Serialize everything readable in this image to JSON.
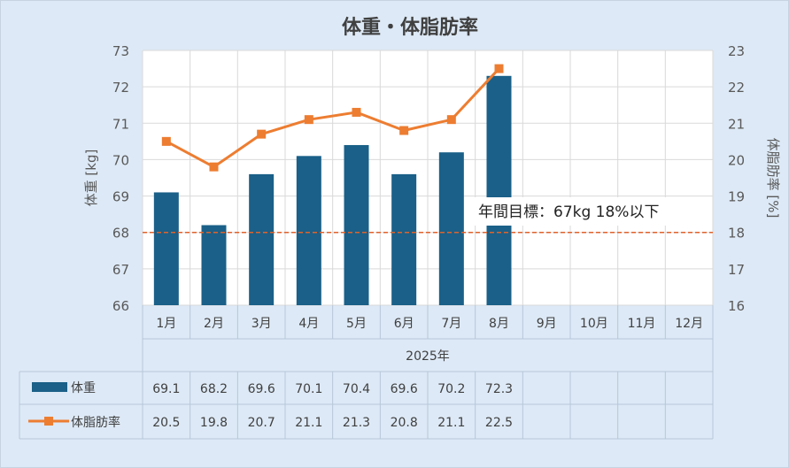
{
  "chart_data": {
    "type": "bar",
    "title": "体重・体脂肪率",
    "categories": [
      "1月",
      "2月",
      "3月",
      "4月",
      "5月",
      "6月",
      "7月",
      "8月",
      "9月",
      "10月",
      "11月",
      "12月"
    ],
    "x_group_label": "2025年",
    "ylabel_left": "体重 [kg]",
    "ylabel_right": "体脂肪率 [%]",
    "ylim_left": [
      66,
      73
    ],
    "ylim_right": [
      16,
      23
    ],
    "yticks_left": [
      "66",
      "67",
      "68",
      "69",
      "70",
      "71",
      "72",
      "73"
    ],
    "yticks_right": [
      "16",
      "17",
      "18",
      "19",
      "20",
      "21",
      "22",
      "23"
    ],
    "grid": true,
    "series": [
      {
        "name": "体重",
        "type": "bar",
        "axis": "left",
        "color": "#1a6088",
        "values": [
          69.1,
          68.2,
          69.6,
          70.1,
          70.4,
          69.6,
          70.2,
          72.3,
          null,
          null,
          null,
          null
        ],
        "labels": [
          "69.1",
          "68.2",
          "69.6",
          "70.1",
          "70.4",
          "69.6",
          "70.2",
          "72.3",
          "",
          "",
          "",
          ""
        ]
      },
      {
        "name": "体脂肪率",
        "type": "line",
        "axis": "right",
        "color": "#ed7d31",
        "values": [
          20.5,
          19.8,
          20.7,
          21.1,
          21.3,
          20.8,
          21.1,
          22.5,
          null,
          null,
          null,
          null
        ],
        "labels": [
          "20.5",
          "19.8",
          "20.7",
          "21.1",
          "21.3",
          "20.8",
          "21.1",
          "22.5",
          "",
          "",
          "",
          ""
        ]
      }
    ],
    "target": {
      "label": "年間目標：67kg 18%以下",
      "value_left": 68,
      "color": "#e0622a"
    }
  }
}
